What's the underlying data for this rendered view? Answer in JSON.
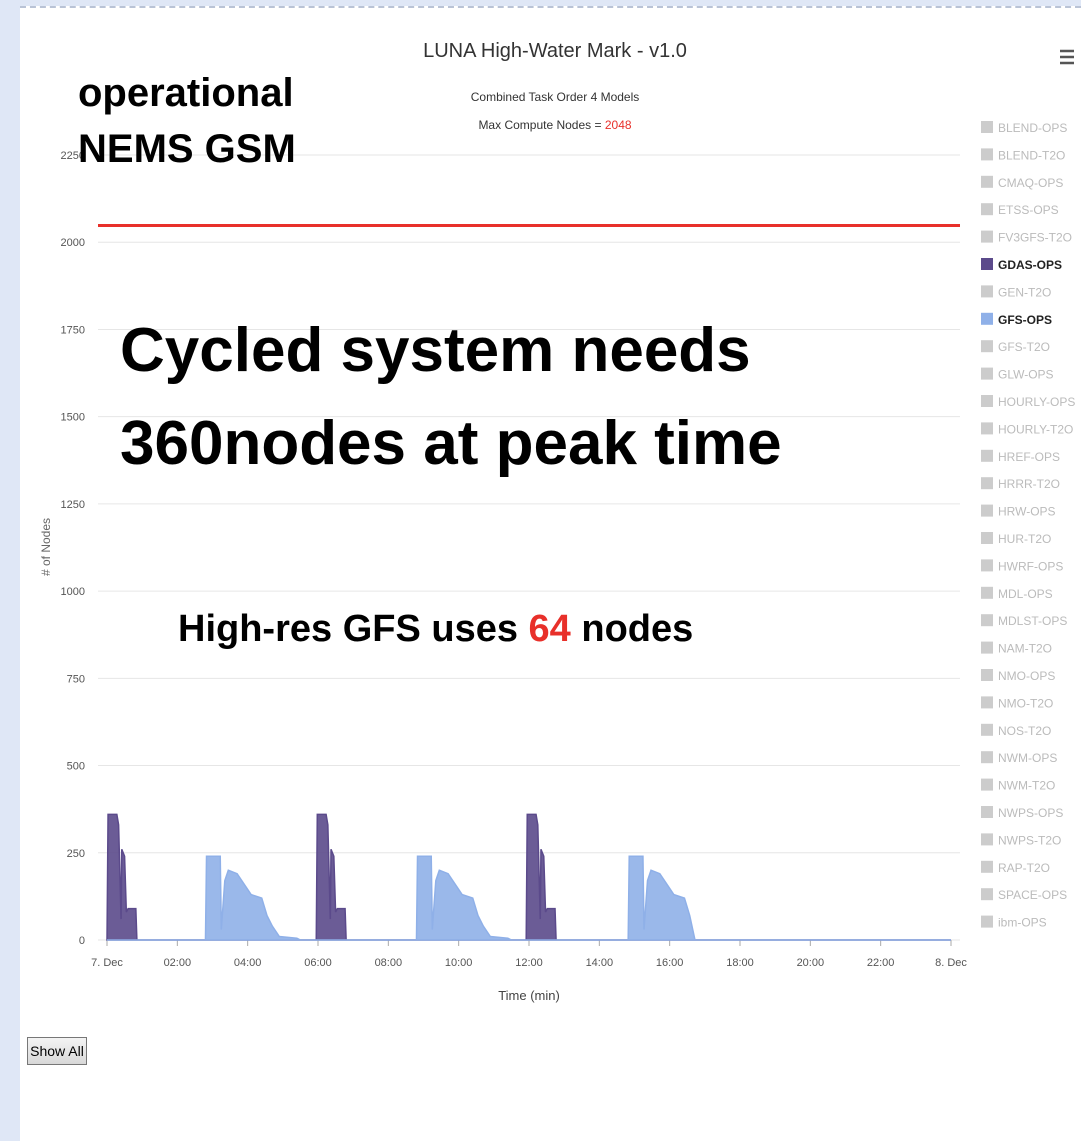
{
  "chart_data": {
    "type": "area",
    "title": "LUNA High-Water Mark - v1.0",
    "subtitle": "Combined Task Order 4 Models",
    "max_label": "Max Compute Nodes = ",
    "max_nodes": 2048,
    "max_color": "#e8302a",
    "y_label": "# of Nodes",
    "x_label": "Time (min)",
    "ylim": [
      0,
      2250
    ],
    "yticks": [
      0,
      250,
      500,
      750,
      1000,
      1250,
      1500,
      1750,
      2000,
      2250
    ],
    "xlim": [
      0,
      24
    ],
    "xticks": [
      {
        "value": 0,
        "label": "7. Dec"
      },
      {
        "value": 2,
        "label": "02:00"
      },
      {
        "value": 4,
        "label": "04:00"
      },
      {
        "value": 6,
        "label": "06:00"
      },
      {
        "value": 8,
        "label": "08:00"
      },
      {
        "value": 10,
        "label": "10:00"
      },
      {
        "value": 12,
        "label": "12:00"
      },
      {
        "value": 14,
        "label": "14:00"
      },
      {
        "value": 16,
        "label": "16:00"
      },
      {
        "value": 18,
        "label": "18:00"
      },
      {
        "value": 20,
        "label": "20:00"
      },
      {
        "value": 22,
        "label": "22:00"
      },
      {
        "value": 24,
        "label": "8. Dec"
      }
    ],
    "grid": true,
    "legend_position": "right",
    "hidden_color": "#cccccc",
    "series": [
      {
        "name": "BLEND-OPS",
        "visible": false
      },
      {
        "name": "BLEND-T2O",
        "visible": false
      },
      {
        "name": "CMAQ-OPS",
        "visible": false
      },
      {
        "name": "ETSS-OPS",
        "visible": false
      },
      {
        "name": "FV3GFS-T2O",
        "visible": false
      },
      {
        "name": "GDAS-OPS",
        "visible": true,
        "color": "#5b4a8b",
        "x": [
          0,
          0.03,
          0.28,
          0.33,
          0.4,
          0.42,
          0.5,
          0.55,
          0.6,
          0.82,
          0.85,
          5.95,
          5.98,
          6.23,
          6.28,
          6.35,
          6.37,
          6.45,
          6.5,
          6.55,
          6.77,
          6.8,
          11.92,
          11.95,
          12.2,
          12.25,
          12.32,
          12.34,
          12.42,
          12.47,
          12.52,
          12.74,
          12.77,
          24
        ],
        "values": [
          0,
          360,
          360,
          330,
          60,
          260,
          240,
          80,
          90,
          90,
          0,
          0,
          360,
          360,
          330,
          60,
          260,
          240,
          80,
          90,
          90,
          0,
          0,
          360,
          360,
          330,
          60,
          260,
          240,
          80,
          90,
          90,
          0,
          0
        ]
      },
      {
        "name": "GEN-T2O",
        "visible": false
      },
      {
        "name": "GFS-OPS",
        "visible": true,
        "color": "#8fb0e8",
        "x": [
          0,
          2.8,
          2.83,
          3.22,
          3.25,
          3.35,
          3.45,
          3.7,
          3.9,
          4.1,
          4.4,
          4.55,
          4.7,
          4.9,
          5.4,
          5.5,
          8.8,
          8.83,
          9.22,
          9.25,
          9.35,
          9.45,
          9.7,
          9.9,
          10.1,
          10.4,
          10.55,
          10.7,
          10.9,
          11.4,
          11.5,
          14.82,
          14.85,
          15.24,
          15.27,
          15.37,
          15.47,
          15.72,
          15.92,
          16.12,
          16.42,
          16.57,
          16.72,
          24
        ],
        "values": [
          0,
          0,
          240,
          240,
          30,
          170,
          200,
          190,
          160,
          130,
          120,
          70,
          40,
          10,
          5,
          0,
          0,
          240,
          240,
          30,
          170,
          200,
          190,
          160,
          130,
          120,
          70,
          40,
          10,
          5,
          0,
          0,
          240,
          240,
          30,
          170,
          200,
          190,
          160,
          130,
          120,
          70,
          0,
          0
        ]
      },
      {
        "name": "GFS-T2O",
        "visible": false
      },
      {
        "name": "GLW-OPS",
        "visible": false
      },
      {
        "name": "HOURLY-OPS",
        "visible": false
      },
      {
        "name": "HOURLY-T2O",
        "visible": false
      },
      {
        "name": "HREF-OPS",
        "visible": false
      },
      {
        "name": "HRRR-T2O",
        "visible": false
      },
      {
        "name": "HRW-OPS",
        "visible": false
      },
      {
        "name": "HUR-T2O",
        "visible": false
      },
      {
        "name": "HWRF-OPS",
        "visible": false
      },
      {
        "name": "MDL-OPS",
        "visible": false
      },
      {
        "name": "MDLST-OPS",
        "visible": false
      },
      {
        "name": "NAM-T2O",
        "visible": false
      },
      {
        "name": "NMO-OPS",
        "visible": false
      },
      {
        "name": "NMO-T2O",
        "visible": false
      },
      {
        "name": "NOS-T2O",
        "visible": false
      },
      {
        "name": "NWM-OPS",
        "visible": false
      },
      {
        "name": "NWM-T2O",
        "visible": false
      },
      {
        "name": "NWPS-OPS",
        "visible": false
      },
      {
        "name": "NWPS-T2O",
        "visible": false
      },
      {
        "name": "RAP-T2O",
        "visible": false
      },
      {
        "name": "SPACE-OPS",
        "visible": false
      },
      {
        "name": "ibm-OPS",
        "visible": false
      }
    ],
    "annotations": {
      "corner": [
        "operational",
        "NEMS GSM"
      ],
      "headline": [
        "Cycled system needs",
        "360nodes at peak time"
      ],
      "note": [
        "High-res GFS uses ",
        "64",
        " nodes"
      ]
    },
    "button": "Show All"
  }
}
